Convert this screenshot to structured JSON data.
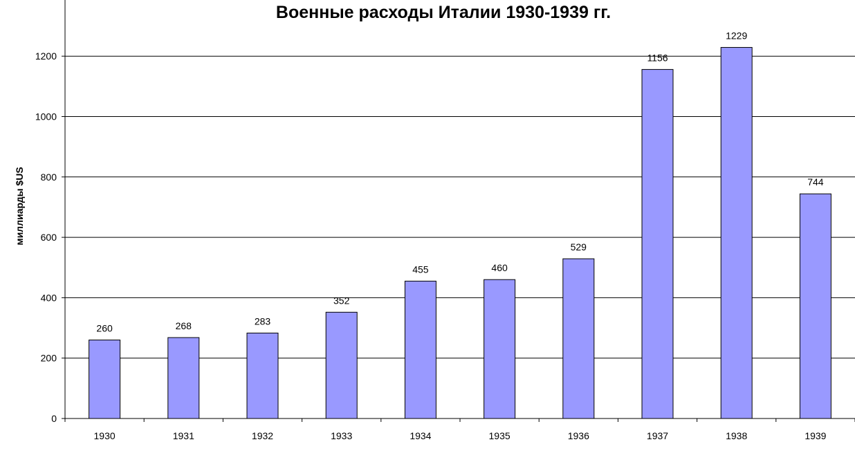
{
  "chart_data": {
    "type": "bar",
    "title": "Военные расходы Италии 1930-1939 гг.",
    "xlabel": "",
    "ylabel": "миллиарды $US",
    "categories": [
      "1930",
      "1931",
      "1932",
      "1933",
      "1934",
      "1935",
      "1936",
      "1937",
      "1938",
      "1939"
    ],
    "values": [
      260,
      268,
      283,
      352,
      455,
      460,
      529,
      1156,
      1229,
      744
    ],
    "ylim": [
      0,
      1200
    ],
    "yticks": [
      0,
      200,
      400,
      600,
      800,
      1000,
      1200
    ],
    "grid": true,
    "data_labels": true,
    "legend": "none",
    "bar_color": "#9999ff",
    "bar_stroke": "#000000"
  }
}
